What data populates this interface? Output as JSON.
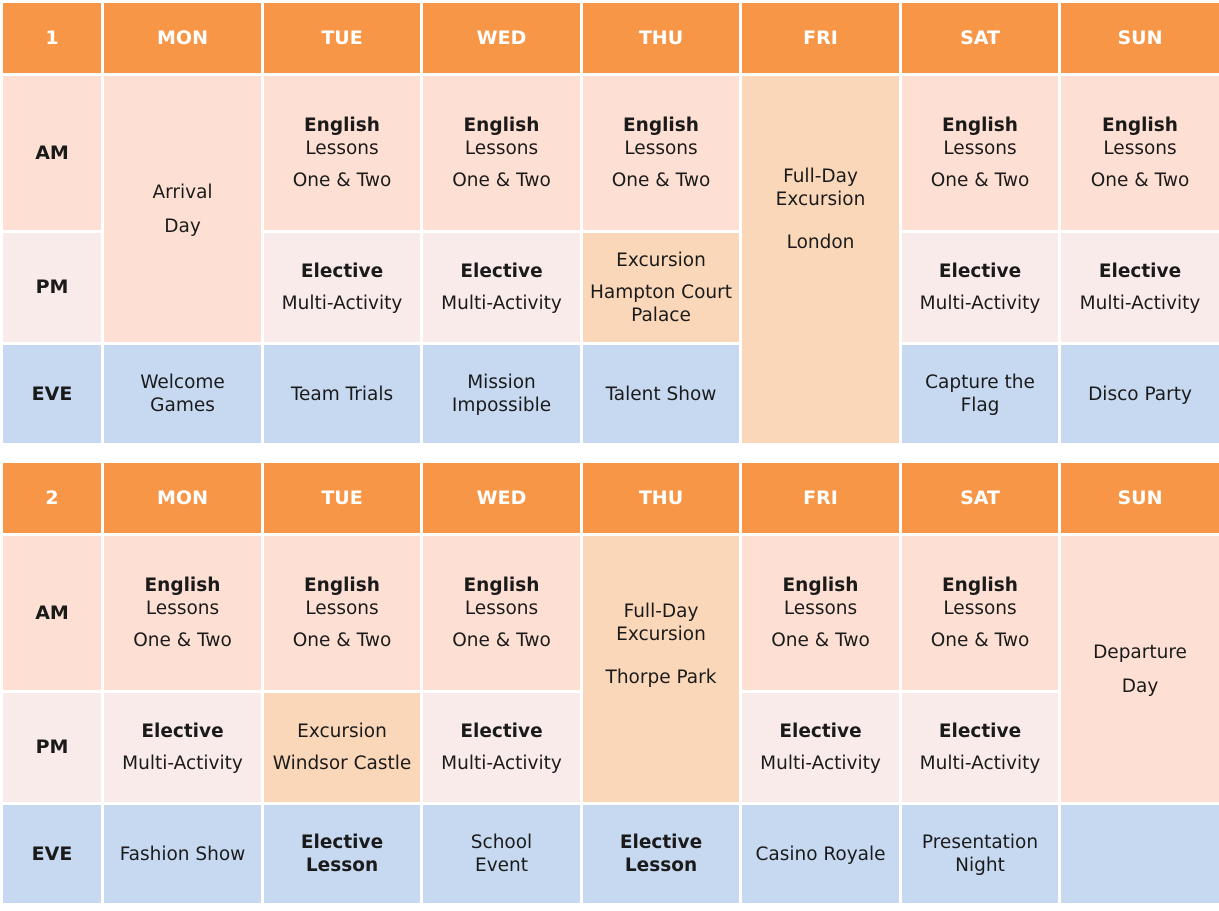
{
  "days": [
    "MON",
    "TUE",
    "WED",
    "THU",
    "FRI",
    "SAT",
    "SUN"
  ],
  "slots": [
    "AM",
    "PM",
    "EVE"
  ],
  "common": {
    "english": "English",
    "lessons": "Lessons",
    "one_two": "One & Two",
    "elective": "Elective",
    "multi": "Multi-Activity",
    "excursion": "Excursion",
    "full_day": "Full-Day",
    "excursion_word": "Excursion",
    "lesson": "Lesson"
  },
  "week1": {
    "number": "1",
    "arrival": [
      "Arrival",
      "Day"
    ],
    "thu_pm_place": [
      "Hampton Court",
      "Palace"
    ],
    "fri_place": "London",
    "eve": {
      "mon": [
        "Welcome",
        "Games"
      ],
      "tue": "Team Trials",
      "wed": [
        "Mission",
        "Impossible"
      ],
      "thu": "Talent Show",
      "sat": [
        "Capture the",
        "Flag"
      ],
      "sun": "Disco Party"
    }
  },
  "week2": {
    "number": "2",
    "tue_pm_place": "Windsor Castle",
    "thu_place": "Thorpe Park",
    "departure": [
      "Departure",
      "Day"
    ],
    "eve": {
      "mon": "Fashion Show",
      "tue": [
        "Elective",
        "Lesson"
      ],
      "wed": [
        "School",
        "Event"
      ],
      "thu": [
        "Elective",
        "Lesson"
      ],
      "fri": "Casino Royale",
      "sat": [
        "Presentation",
        "Night"
      ],
      "sun": ""
    }
  }
}
